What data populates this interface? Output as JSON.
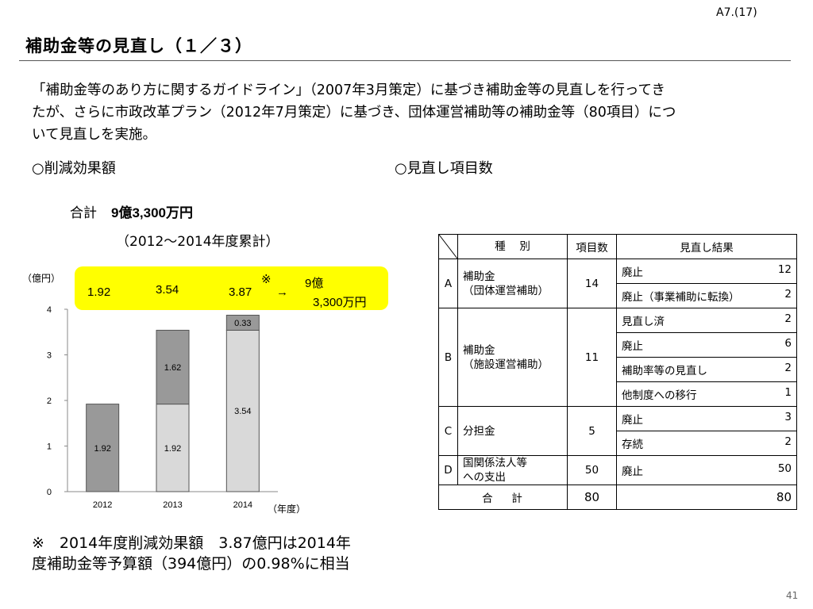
{
  "slide_id": "A7.(17)",
  "title": "補助金等の見直し（１／３）",
  "intro": {
    "line1": "「補助金等のあり方に関するガイドライン」（2007年3月策定）に基づき補助金等の見直しを行ってき",
    "line2": "たが、さらに市政改革プラン（2012年7月策定）に基づき、団体運営補助等の補助金等（80項目）につ",
    "line3": "いて見直しを実施。"
  },
  "section_left": "○削減効果額",
  "section_right": "○見直し項目数",
  "total_label": "合計",
  "total_value": "9億3,300万円",
  "cumulative": "（2012～2014年度累計）",
  "unit_oku": "（億円）",
  "unit_year": "（年度）",
  "yellow": {
    "v2012": "1.92",
    "v2013": "3.54",
    "v2014": "3.87",
    "mark": "※",
    "arrow": "→",
    "total_top": "9億",
    "total_bottom": "3,300万円"
  },
  "chart_data": {
    "type": "bar",
    "stacked": true,
    "categories": [
      "2012",
      "2013",
      "2014"
    ],
    "series": [
      {
        "values": [
          1.92,
          1.92,
          3.54
        ],
        "colors": [
          "#999999",
          "#d9d9d9",
          "#d9d9d9"
        ]
      },
      {
        "values": [
          0,
          1.62,
          0.33
        ],
        "colors": [
          "#999999",
          "#999999",
          "#999999"
        ]
      }
    ],
    "ylim": [
      0,
      4
    ],
    "yticks": [
      0,
      1,
      2,
      3,
      4
    ],
    "ylabel": "（億円）",
    "xlabel": "（年度）"
  },
  "table": {
    "headers": [
      "種　 別",
      "項目数",
      "見直し結果"
    ],
    "groups": [
      {
        "letter": "A",
        "type": "補助金\n（団体運営補助）",
        "count": "14",
        "results": [
          {
            "label": "廃止",
            "num": "12"
          },
          {
            "label": "廃止（事業補助に転換）",
            "num": "2"
          }
        ]
      },
      {
        "letter": "B",
        "type": "補助金\n（施設運営補助）",
        "count": "11",
        "results": [
          {
            "label": "見直し済",
            "num": "2"
          },
          {
            "label": "廃止",
            "num": "6"
          },
          {
            "label": "補助率等の見直し",
            "num": "2"
          },
          {
            "label": "他制度への移行",
            "num": "1"
          }
        ]
      },
      {
        "letter": "C",
        "type": "分担金",
        "count": "5",
        "results": [
          {
            "label": "廃止",
            "num": "3"
          },
          {
            "label": "存続",
            "num": "2"
          }
        ]
      },
      {
        "letter": "D",
        "type": "国関係法人等\nへの支出",
        "count": "50",
        "results": [
          {
            "label": "廃止",
            "num": "50"
          }
        ]
      }
    ],
    "total_label": "合　 計",
    "total_count": "80",
    "total_result": "80"
  },
  "note_line1": "※　2014年度削減効果額　3.87億円は2014年",
  "note_line2": "度補助金等予算額（394億円）の0.98%に相当",
  "page_number": "41"
}
